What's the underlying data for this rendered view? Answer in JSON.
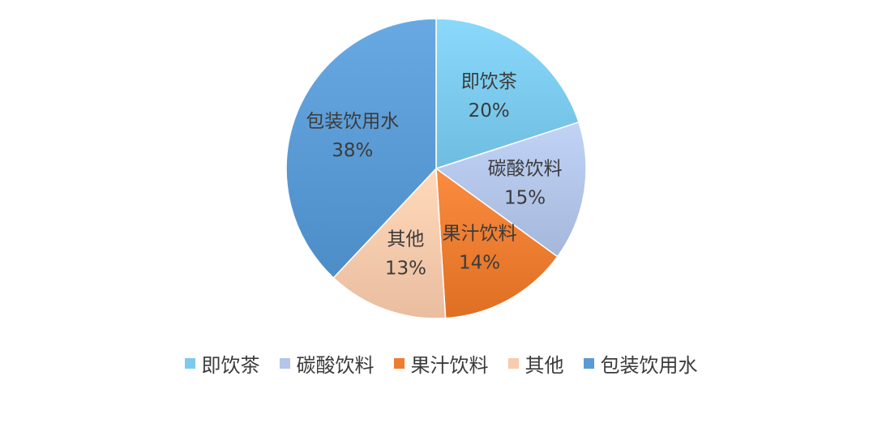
{
  "chart_data": {
    "type": "pie",
    "title": "",
    "start_angle_deg": 0,
    "direction": "clockwise",
    "legend_position": "bottom",
    "slices": [
      {
        "name": "即饮茶",
        "value": 20,
        "label": "20%",
        "color": "#7ccbee"
      },
      {
        "name": "碳酸饮料",
        "value": 15,
        "label": "15%",
        "color": "#b3c5e8"
      },
      {
        "name": "果汁饮料",
        "value": 14,
        "label": "14%",
        "color": "#ed7d31"
      },
      {
        "name": "其他",
        "value": 13,
        "label": "13%",
        "color": "#f8cbad"
      },
      {
        "name": "包装饮用水",
        "value": 38,
        "label": "38%",
        "color": "#5b9bd5"
      }
    ]
  }
}
